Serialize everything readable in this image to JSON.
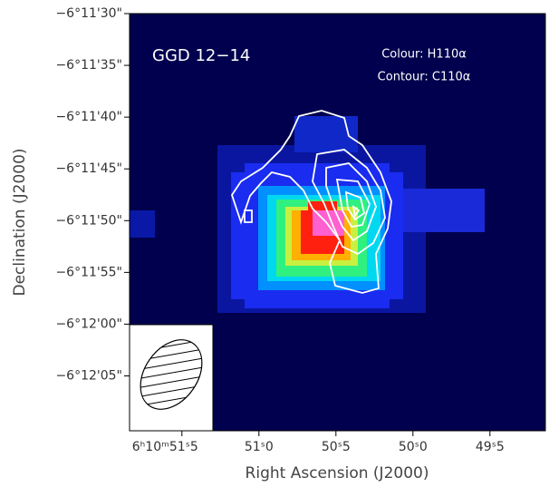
{
  "chart_data": {
    "type": "image",
    "title": "GGD 12−14",
    "color_label": "Colour: H110α",
    "contour_label": "Contour: C110α",
    "xlabel": "Right Ascension (J2000)",
    "ylabel": "Declination (J2000)",
    "xlim": [
      22251.84,
      22249.14
    ],
    "xticks": [
      {
        "value": 22251.5,
        "label": "6ʰ10ᵐ51ˢ5"
      },
      {
        "value": 22251,
        "label": "51ˢ0"
      },
      {
        "value": 22250.5,
        "label": "50ˢ5"
      },
      {
        "value": 22250,
        "label": "50ˢ0"
      },
      {
        "value": 22249.5,
        "label": "49ˢ5"
      }
    ],
    "ylim": [
      -22330.3,
      -22290
    ],
    "yticks": [
      {
        "value": -22290,
        "label": "−6°11'30\""
      },
      {
        "value": -22295,
        "label": "−6°11'35\""
      },
      {
        "value": -22300,
        "label": "−6°11'40\""
      },
      {
        "value": -22305,
        "label": "−6°11'45\""
      },
      {
        "value": -22310,
        "label": "−6°11'50\""
      },
      {
        "value": -22315,
        "label": "−6°11'55\""
      },
      {
        "value": -22320,
        "label": "−6°12'00\""
      },
      {
        "value": -22325,
        "label": "−6°12'05\""
      }
    ]
  }
}
